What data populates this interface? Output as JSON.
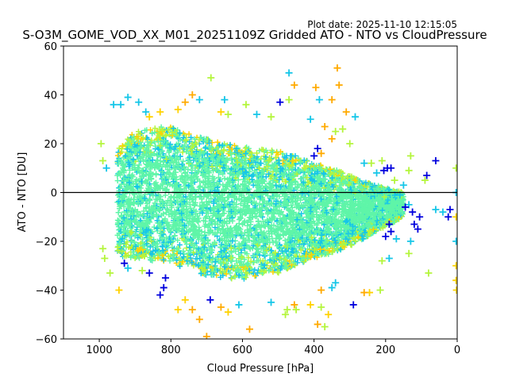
{
  "header": {
    "plot_date": "Plot date: 2025-11-10 12:15:05"
  },
  "chart_data": {
    "type": "scatter",
    "title": "S-O3M_GOME_VOD_XX_M01_20251109Z Gridded ATO - NTO vs CloudPressure",
    "xlabel": "Cloud Pressure [hPa]",
    "ylabel": "ATO - NTO [DU]",
    "xlim": [
      1100,
      0
    ],
    "ylim": [
      -60,
      60
    ],
    "x_inverted": true,
    "xticks": [
      1000,
      800,
      600,
      400,
      200,
      0
    ],
    "yticks": [
      60,
      40,
      20,
      0,
      -20,
      -40,
      -60
    ],
    "reference_line_y": 0,
    "marker": "+",
    "grid": false,
    "legend": "none",
    "colors": {
      "core": "#5ff5a8",
      "mid": "#16c6e8",
      "yellow_green": "#b4f53c",
      "yellow": "#ffd200",
      "orange": "#ffaa00",
      "dark_blue": "#0000dd",
      "reference_line": "#000000"
    },
    "core_region": [
      {
        "x": 950,
        "y_min": -26,
        "y_max": 18
      },
      {
        "x": 900,
        "y_min": -27,
        "y_max": 25
      },
      {
        "x": 850,
        "y_min": -28,
        "y_max": 27
      },
      {
        "x": 800,
        "y_min": -29,
        "y_max": 27
      },
      {
        "x": 750,
        "y_min": -32,
        "y_max": 24
      },
      {
        "x": 700,
        "y_min": -34,
        "y_max": 22
      },
      {
        "x": 650,
        "y_min": -35,
        "y_max": 20
      },
      {
        "x": 600,
        "y_min": -36,
        "y_max": 19
      },
      {
        "x": 550,
        "y_min": -34,
        "y_max": 18
      },
      {
        "x": 500,
        "y_min": -33,
        "y_max": 17
      },
      {
        "x": 450,
        "y_min": -30,
        "y_max": 15
      },
      {
        "x": 400,
        "y_min": -27,
        "y_max": 12
      },
      {
        "x": 350,
        "y_min": -25,
        "y_max": 10
      },
      {
        "x": 300,
        "y_min": -22,
        "y_max": 7
      },
      {
        "x": 250,
        "y_min": -18,
        "y_max": 4
      },
      {
        "x": 200,
        "y_min": -14,
        "y_max": 2
      },
      {
        "x": 150,
        "y_min": -10,
        "y_max": 0
      }
    ],
    "scatter_points": [
      {
        "x": 688,
        "y": 47,
        "c": "yellow_green"
      },
      {
        "x": 740,
        "y": 40,
        "c": "orange"
      },
      {
        "x": 720,
        "y": 38,
        "c": "mid"
      },
      {
        "x": 470,
        "y": 49,
        "c": "mid"
      },
      {
        "x": 335,
        "y": 51,
        "c": "orange"
      },
      {
        "x": 330,
        "y": 44,
        "c": "orange"
      },
      {
        "x": 395,
        "y": 43,
        "c": "orange"
      },
      {
        "x": 455,
        "y": 44,
        "c": "orange"
      },
      {
        "x": 385,
        "y": 38,
        "c": "mid"
      },
      {
        "x": 350,
        "y": 38,
        "c": "orange"
      },
      {
        "x": 495,
        "y": 37,
        "c": "dark_blue"
      },
      {
        "x": 470,
        "y": 38,
        "c": "yellow_green"
      },
      {
        "x": 590,
        "y": 36,
        "c": "yellow_green"
      },
      {
        "x": 650,
        "y": 38,
        "c": "mid"
      },
      {
        "x": 960,
        "y": 36,
        "c": "mid"
      },
      {
        "x": 940,
        "y": 36,
        "c": "mid"
      },
      {
        "x": 920,
        "y": 39,
        "c": "mid"
      },
      {
        "x": 890,
        "y": 37,
        "c": "mid"
      },
      {
        "x": 870,
        "y": 33,
        "c": "mid"
      },
      {
        "x": 830,
        "y": 33,
        "c": "yellow"
      },
      {
        "x": 310,
        "y": 33,
        "c": "orange"
      },
      {
        "x": 285,
        "y": 31,
        "c": "mid"
      },
      {
        "x": 410,
        "y": 30,
        "c": "mid"
      },
      {
        "x": 520,
        "y": 31,
        "c": "yellow_green"
      },
      {
        "x": 560,
        "y": 32,
        "c": "mid"
      },
      {
        "x": 640,
        "y": 32,
        "c": "yellow_green"
      },
      {
        "x": 390,
        "y": 18,
        "c": "dark_blue"
      },
      {
        "x": 400,
        "y": 15,
        "c": "dark_blue"
      },
      {
        "x": 380,
        "y": 16,
        "c": "orange"
      },
      {
        "x": 340,
        "y": 25,
        "c": "yellow_green"
      },
      {
        "x": 370,
        "y": 27,
        "c": "orange"
      },
      {
        "x": 350,
        "y": 22,
        "c": "orange"
      },
      {
        "x": 240,
        "y": 12,
        "c": "yellow_green"
      },
      {
        "x": 260,
        "y": 12,
        "c": "mid"
      },
      {
        "x": 210,
        "y": 13,
        "c": "yellow_green"
      },
      {
        "x": 195,
        "y": 10,
        "c": "dark_blue"
      },
      {
        "x": 185,
        "y": 10,
        "c": "dark_blue"
      },
      {
        "x": 205,
        "y": 9,
        "c": "dark_blue"
      },
      {
        "x": 225,
        "y": 8,
        "c": "mid"
      },
      {
        "x": 175,
        "y": 5,
        "c": "yellow_green"
      },
      {
        "x": 130,
        "y": 15,
        "c": "yellow_green"
      },
      {
        "x": 135,
        "y": 9,
        "c": "yellow_green"
      },
      {
        "x": 60,
        "y": 13,
        "c": "dark_blue"
      },
      {
        "x": 85,
        "y": 7,
        "c": "dark_blue"
      },
      {
        "x": 90,
        "y": 5,
        "c": "yellow_green"
      },
      {
        "x": 150,
        "y": 3,
        "c": "mid"
      },
      {
        "x": 160,
        "y": -1,
        "c": "mid"
      },
      {
        "x": 135,
        "y": -5,
        "c": "mid"
      },
      {
        "x": 145,
        "y": -6,
        "c": "dark_blue"
      },
      {
        "x": 125,
        "y": -8,
        "c": "dark_blue"
      },
      {
        "x": 105,
        "y": -10,
        "c": "dark_blue"
      },
      {
        "x": 120,
        "y": -13,
        "c": "dark_blue"
      },
      {
        "x": 110,
        "y": -15,
        "c": "dark_blue"
      },
      {
        "x": 190,
        "y": -13,
        "c": "dark_blue"
      },
      {
        "x": 185,
        "y": -16,
        "c": "dark_blue"
      },
      {
        "x": 200,
        "y": -18,
        "c": "dark_blue"
      },
      {
        "x": 170,
        "y": -19,
        "c": "mid"
      },
      {
        "x": 130,
        "y": -20,
        "c": "mid"
      },
      {
        "x": 135,
        "y": -25,
        "c": "yellow_green"
      },
      {
        "x": 80,
        "y": -33,
        "c": "yellow_green"
      },
      {
        "x": 60,
        "y": -7,
        "c": "mid"
      },
      {
        "x": 40,
        "y": -8,
        "c": "mid"
      },
      {
        "x": 25,
        "y": -10,
        "c": "dark_blue"
      },
      {
        "x": 20,
        "y": -7,
        "c": "dark_blue"
      },
      {
        "x": 210,
        "y": -28,
        "c": "yellow_green"
      },
      {
        "x": 190,
        "y": -27,
        "c": "mid"
      },
      {
        "x": 215,
        "y": -40,
        "c": "yellow_green"
      },
      {
        "x": 245,
        "y": -41,
        "c": "yellow"
      },
      {
        "x": 260,
        "y": -41,
        "c": "orange"
      },
      {
        "x": 290,
        "y": -46,
        "c": "dark_blue"
      },
      {
        "x": 340,
        "y": -37,
        "c": "mid"
      },
      {
        "x": 350,
        "y": -39,
        "c": "mid"
      },
      {
        "x": 380,
        "y": -40,
        "c": "orange"
      },
      {
        "x": 390,
        "y": -54,
        "c": "orange"
      },
      {
        "x": 370,
        "y": -55,
        "c": "yellow_green"
      },
      {
        "x": 360,
        "y": -50,
        "c": "yellow"
      },
      {
        "x": 380,
        "y": -47,
        "c": "yellow_green"
      },
      {
        "x": 410,
        "y": -46,
        "c": "yellow"
      },
      {
        "x": 455,
        "y": -46,
        "c": "orange"
      },
      {
        "x": 450,
        "y": -48,
        "c": "yellow_green"
      },
      {
        "x": 475,
        "y": -48,
        "c": "yellow_green"
      },
      {
        "x": 480,
        "y": -50,
        "c": "yellow_green"
      },
      {
        "x": 520,
        "y": -45,
        "c": "mid"
      },
      {
        "x": 580,
        "y": -56,
        "c": "orange"
      },
      {
        "x": 640,
        "y": -49,
        "c": "yellow"
      },
      {
        "x": 660,
        "y": -47,
        "c": "orange"
      },
      {
        "x": 610,
        "y": -46,
        "c": "mid"
      },
      {
        "x": 700,
        "y": -59,
        "c": "orange"
      },
      {
        "x": 690,
        "y": -44,
        "c": "dark_blue"
      },
      {
        "x": 720,
        "y": -52,
        "c": "orange"
      },
      {
        "x": 740,
        "y": -48,
        "c": "orange"
      },
      {
        "x": 780,
        "y": -48,
        "c": "yellow"
      },
      {
        "x": 760,
        "y": -44,
        "c": "yellow"
      },
      {
        "x": 830,
        "y": -42,
        "c": "dark_blue"
      },
      {
        "x": 820,
        "y": -39,
        "c": "dark_blue"
      },
      {
        "x": 815,
        "y": -35,
        "c": "dark_blue"
      },
      {
        "x": 860,
        "y": -33,
        "c": "dark_blue"
      },
      {
        "x": 880,
        "y": -32,
        "c": "yellow_green"
      },
      {
        "x": 920,
        "y": -31,
        "c": "mid"
      },
      {
        "x": 930,
        "y": -29,
        "c": "dark_blue"
      },
      {
        "x": 945,
        "y": -40,
        "c": "yellow"
      },
      {
        "x": 970,
        "y": -33,
        "c": "yellow_green"
      },
      {
        "x": 985,
        "y": -27,
        "c": "yellow_green"
      },
      {
        "x": 990,
        "y": -23,
        "c": "yellow_green"
      },
      {
        "x": 995,
        "y": 20,
        "c": "yellow_green"
      },
      {
        "x": 990,
        "y": 13,
        "c": "yellow_green"
      },
      {
        "x": 980,
        "y": 10,
        "c": "mid"
      },
      {
        "x": 860,
        "y": 31,
        "c": "yellow"
      },
      {
        "x": 780,
        "y": 34,
        "c": "yellow"
      },
      {
        "x": 760,
        "y": 37,
        "c": "orange"
      },
      {
        "x": 660,
        "y": 33,
        "c": "yellow"
      },
      {
        "x": 320,
        "y": 26,
        "c": "yellow_green"
      },
      {
        "x": 300,
        "y": 20,
        "c": "yellow_green"
      },
      {
        "x": 3,
        "y": 10,
        "c": "yellow_green"
      },
      {
        "x": 3,
        "y": 0,
        "c": "mid"
      },
      {
        "x": 3,
        "y": -10,
        "c": "yellow"
      },
      {
        "x": 3,
        "y": -20,
        "c": "mid"
      },
      {
        "x": 3,
        "y": -30,
        "c": "yellow"
      },
      {
        "x": 3,
        "y": -36,
        "c": "yellow"
      },
      {
        "x": 2,
        "y": -40,
        "c": "yellow"
      }
    ]
  }
}
